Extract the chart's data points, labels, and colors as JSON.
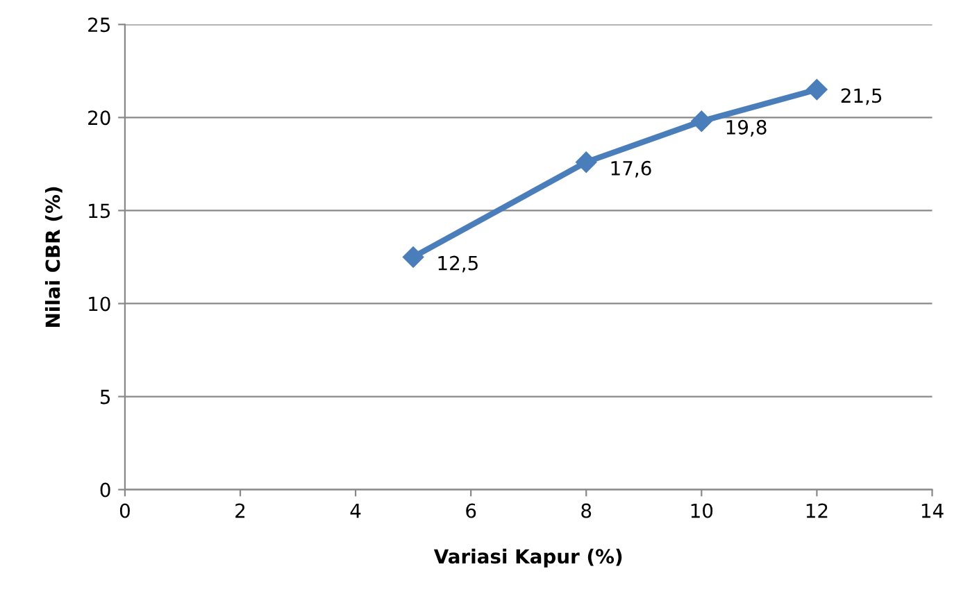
{
  "chart_data": {
    "type": "line",
    "xlabel": "Variasi Kapur (%)",
    "ylabel": "Nilai CBR (%)",
    "x": [
      5,
      8,
      10,
      12
    ],
    "series": [
      {
        "color": "#4a7ebb",
        "values": [
          12.5,
          17.6,
          19.8,
          21.5
        ],
        "value_labels": [
          "12,5",
          "17,6",
          "19,8",
          "21,5"
        ]
      }
    ],
    "xlim": [
      0,
      14
    ],
    "xticks": [
      0,
      2,
      4,
      6,
      8,
      10,
      12,
      14
    ],
    "ylim": [
      0,
      25
    ],
    "yticks": [
      0,
      5,
      10,
      15,
      20,
      25
    ],
    "grid": "y",
    "marker": "diamond",
    "line_style": "solid"
  }
}
